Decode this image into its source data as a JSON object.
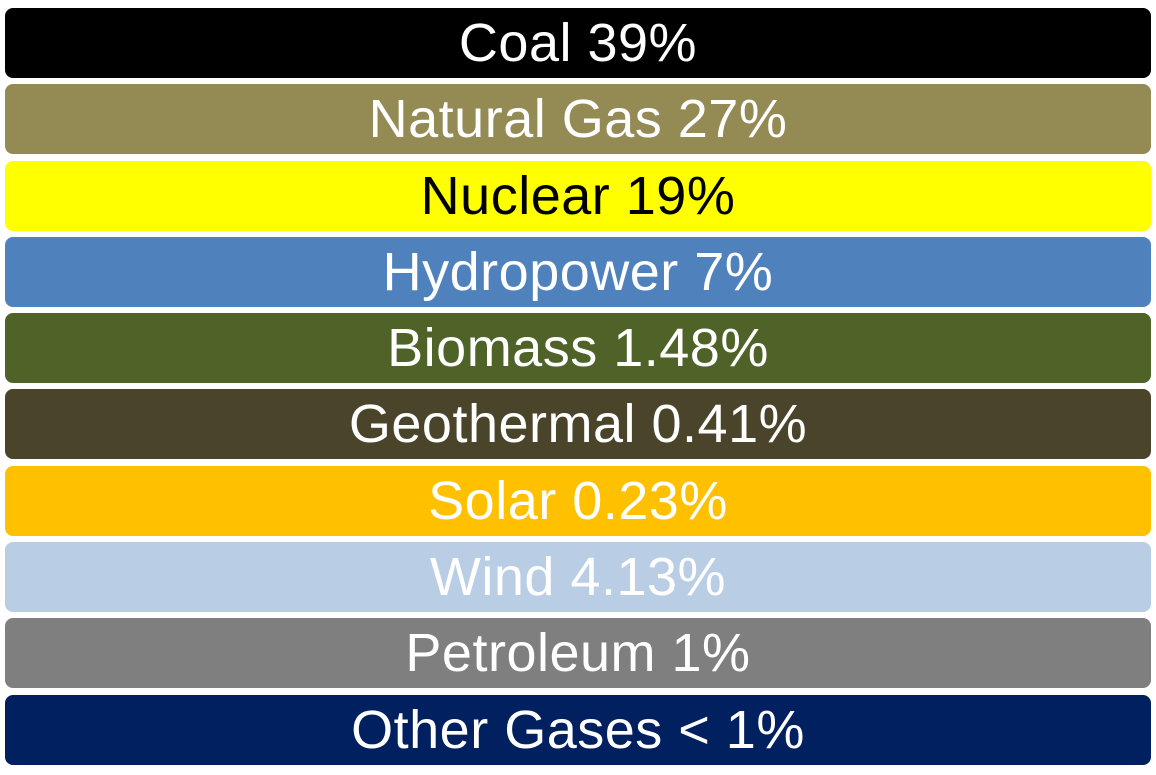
{
  "items": [
    {
      "label": "Coal 39%",
      "fill": "#000000",
      "text_color": "#ffffff"
    },
    {
      "label": "Natural Gas 27%",
      "fill": "#948A54",
      "text_color": "#ffffff"
    },
    {
      "label": "Nuclear 19%",
      "fill": "#FFFF00",
      "text_color": "#000000"
    },
    {
      "label": "Hydropower 7%",
      "fill": "#4F81BD",
      "text_color": "#ffffff"
    },
    {
      "label": "Biomass 1.48%",
      "fill": "#4F6228",
      "text_color": "#ffffff"
    },
    {
      "label": "Geothermal 0.41%",
      "fill": "#4A452A",
      "text_color": "#ffffff"
    },
    {
      "label": "Solar 0.23%",
      "fill": "#FFC000",
      "text_color": "#ffffff"
    },
    {
      "label": "Wind 4.13%",
      "fill": "#B9CDE5",
      "text_color": "#ffffff"
    },
    {
      "label": "Petroleum 1%",
      "fill": "#7F7F7F",
      "text_color": "#ffffff"
    },
    {
      "label": "Other Gases < 1%",
      "fill": "#002060",
      "text_color": "#ffffff"
    }
  ]
}
